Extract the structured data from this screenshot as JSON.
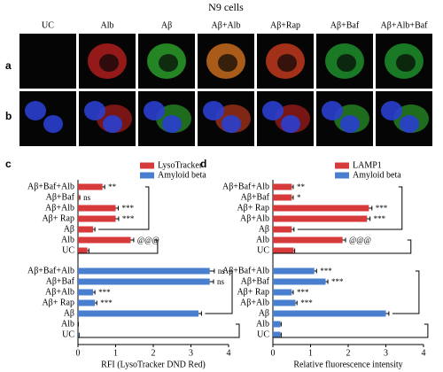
{
  "figure": {
    "title": "N9 cells",
    "columns": [
      "UC",
      "Alb",
      "Aβ",
      "Aβ+Alb",
      "Aβ+Rap",
      "Aβ+Baf",
      "Aβ+Alb+Baf"
    ],
    "rows": [
      "a",
      "b"
    ]
  },
  "chart_data": [
    {
      "type": "bar",
      "orientation": "horizontal",
      "panel": "c",
      "xlabel": "RFI (LysoTracker  DND  Red)",
      "xlim": [
        0,
        4
      ],
      "xticks": [
        0,
        1,
        2,
        3,
        4
      ],
      "legend": "top-right",
      "series": [
        {
          "name": "LysoTracker",
          "color": "#d63a3a",
          "categories": [
            "Aβ+Baf+Alb",
            "Aβ+Baf",
            "Aβ+Alb",
            "Aβ+ Rap",
            "Aβ",
            "Alb",
            "UC"
          ],
          "values": [
            0.65,
            0.03,
            1.0,
            1.0,
            0.4,
            1.4,
            0.25
          ],
          "errors": [
            0.06,
            0.02,
            0.07,
            0.08,
            0.05,
            0.08,
            0.04
          ],
          "annotations": [
            "**",
            "ns",
            "***",
            "***",
            null,
            "@@@",
            null
          ]
        },
        {
          "name": "Amyloid beta",
          "color": "#4a7fd0",
          "categories": [
            "Aβ+Baf+Alb",
            "Aβ+Baf",
            "Aβ+Alb",
            "Aβ+ Rap",
            "Aβ",
            "Alb",
            "UC"
          ],
          "values": [
            3.5,
            3.5,
            0.4,
            0.45,
            3.2,
            0.0,
            0.02
          ],
          "errors": [
            0.12,
            0.1,
            0.05,
            0.05,
            0.08,
            0.01,
            0.01
          ],
          "annotations": [
            "ns",
            "ns",
            "***",
            "***",
            null,
            null,
            null
          ]
        }
      ]
    },
    {
      "type": "bar",
      "orientation": "horizontal",
      "panel": "d",
      "xlabel": "Relative fluorescence intensity",
      "xlim": [
        0,
        4
      ],
      "xticks": [
        0,
        1,
        2,
        3,
        4
      ],
      "legend": "top-right",
      "series": [
        {
          "name": "LAMP1",
          "color": "#d63a3a",
          "categories": [
            "Aβ+Baf+Alb",
            "Aβ+Baf",
            "Aβ+ Rap",
            "Aβ+Alb",
            "Aβ",
            "Alb",
            "UC"
          ],
          "values": [
            0.5,
            0.5,
            2.55,
            2.5,
            0.5,
            1.85,
            0.55
          ],
          "errors": [
            0.04,
            0.04,
            0.08,
            0.08,
            0.06,
            0.08,
            0.03
          ],
          "annotations": [
            "**",
            "*",
            "***",
            "***",
            null,
            "@@@",
            null
          ]
        },
        {
          "name": "Amyloid beta",
          "color": "#4a7fd0",
          "categories": [
            "Aβ+Baf+Alb",
            "Aβ+Baf",
            "Aβ+ Rap",
            "Aβ+Alb",
            "Aβ",
            "Alb",
            "UC"
          ],
          "values": [
            1.1,
            1.4,
            0.5,
            0.6,
            3.0,
            0.2,
            0.2
          ],
          "errors": [
            0.06,
            0.06,
            0.04,
            0.04,
            0.08,
            0.02,
            0.02
          ],
          "annotations": [
            "***",
            "***",
            "***",
            "***",
            null,
            null,
            null
          ]
        }
      ]
    }
  ]
}
